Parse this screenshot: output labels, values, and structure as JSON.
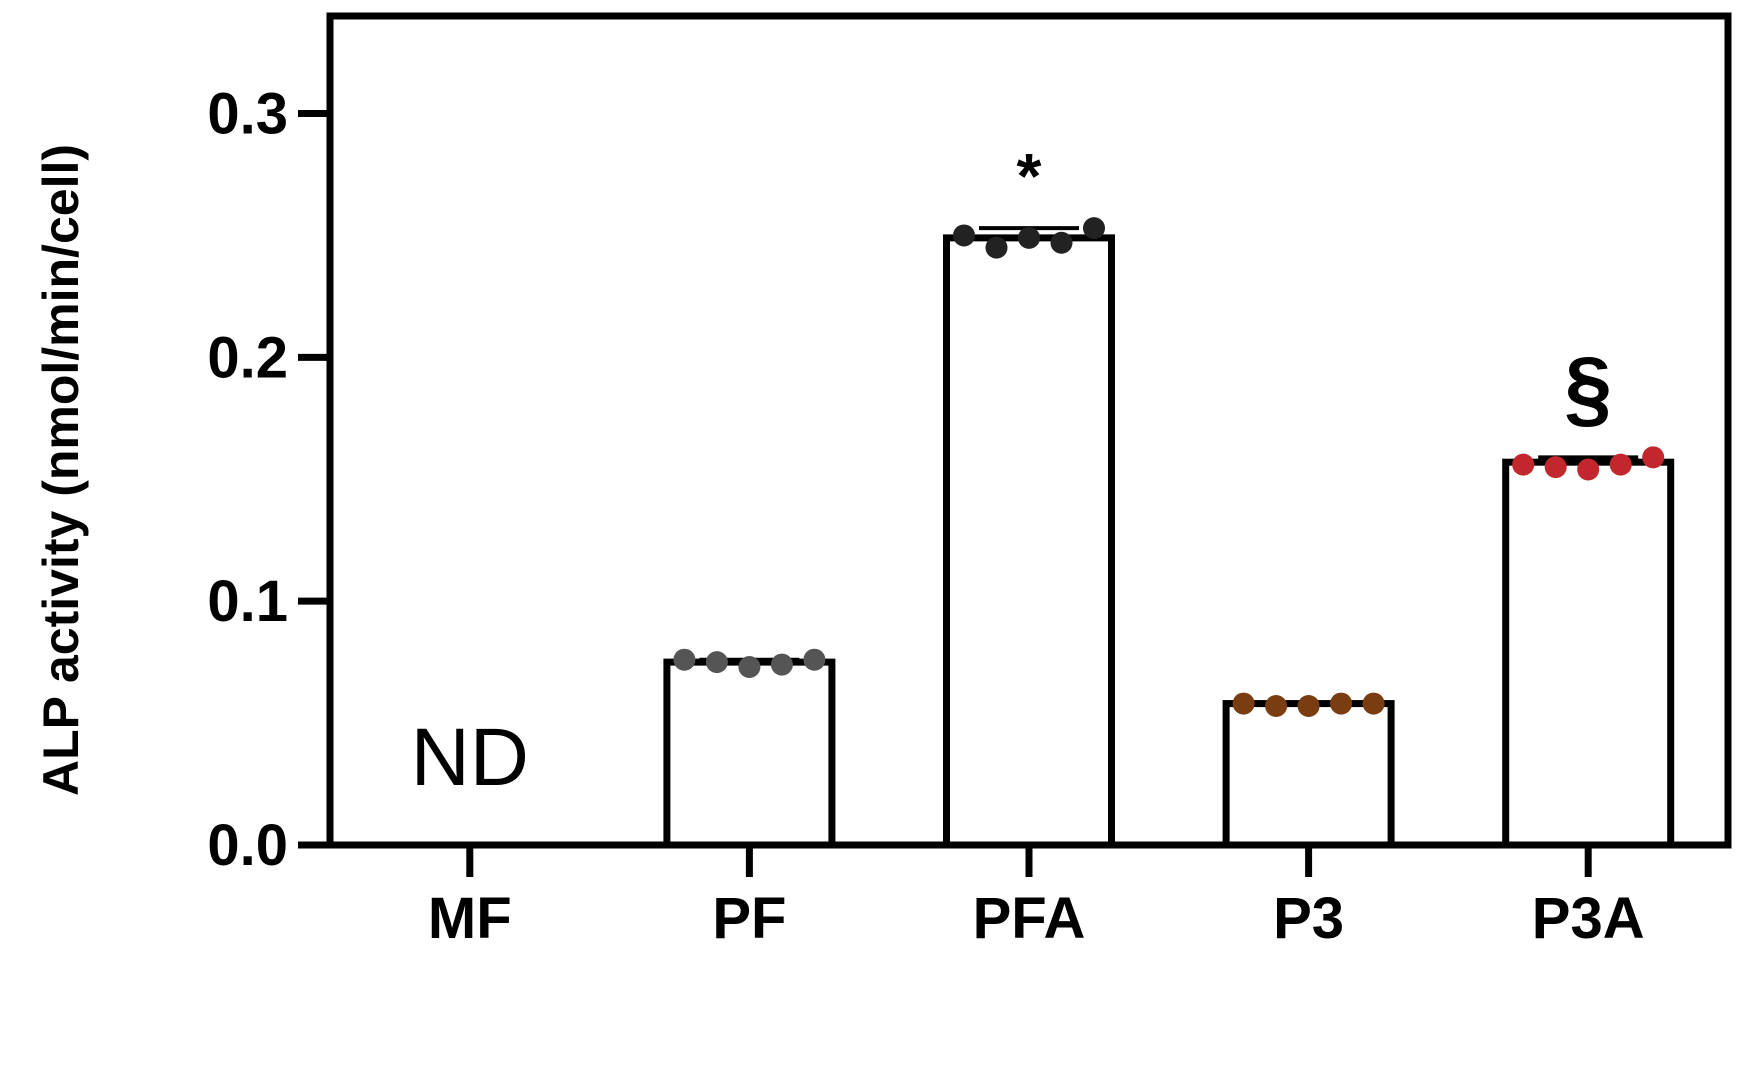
{
  "chart_data": {
    "type": "bar",
    "ylabel": "ALP activity (nmol/min/cell)",
    "xlabel": "",
    "ylim": [
      0,
      0.34
    ],
    "yticks": [
      0.0,
      0.1,
      0.2,
      0.3
    ],
    "ytick_labels": [
      "0.0",
      "0.1",
      "0.2",
      "0.3"
    ],
    "categories": [
      "MF",
      "PF",
      "PFA",
      "P3",
      "P3A"
    ],
    "values": [
      null,
      0.075,
      0.249,
      0.058,
      0.157
    ],
    "points": [
      [],
      [
        0.076,
        0.075,
        0.073,
        0.074,
        0.076
      ],
      [
        0.25,
        0.245,
        0.249,
        0.247,
        0.253
      ],
      [
        0.058,
        0.057,
        0.057,
        0.058,
        0.058
      ],
      [
        0.156,
        0.155,
        0.154,
        0.156,
        0.159
      ]
    ],
    "point_colors": [
      "#000000",
      "#555555",
      "#222222",
      "#7a3d12",
      "#c1272d"
    ],
    "bar_annotations": [
      "ND",
      "",
      "*",
      "",
      "§"
    ],
    "bar_fill": "#ffffff",
    "bar_stroke": "#000000",
    "grid": false
  }
}
